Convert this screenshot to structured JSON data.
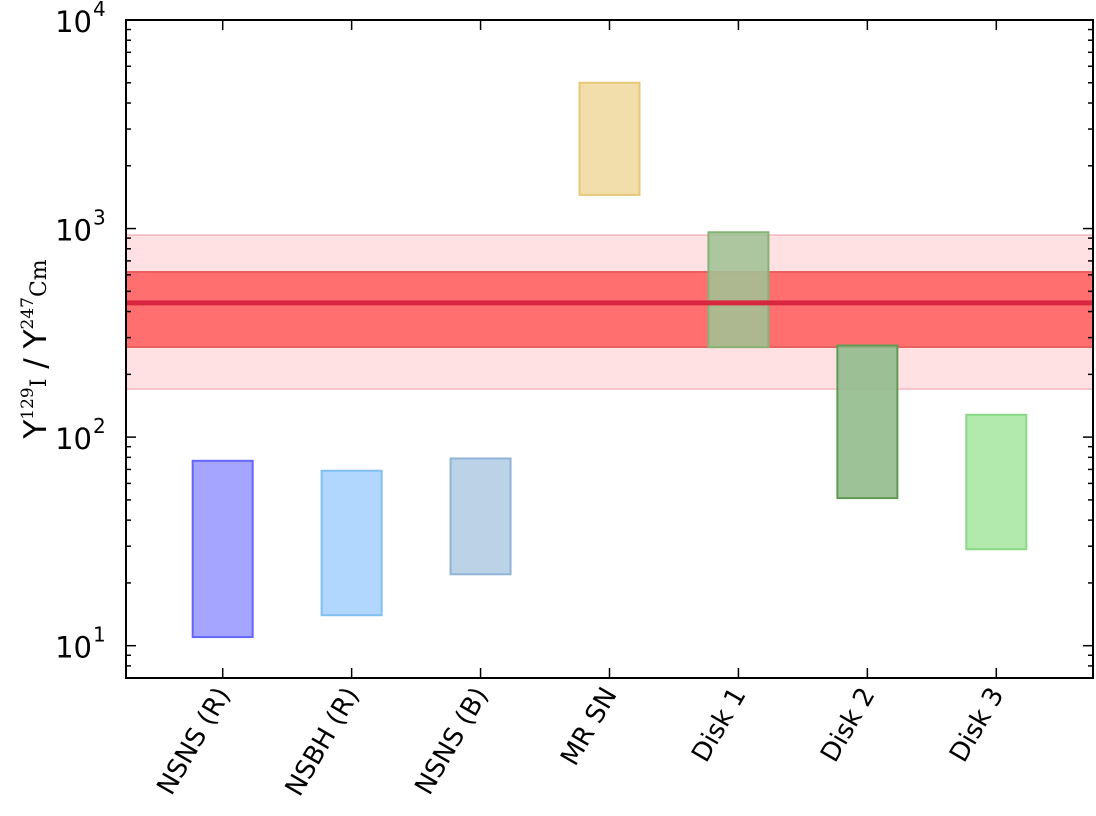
{
  "chart_data": {
    "type": "bar",
    "yscale": "log",
    "ylim": [
      7,
      10000
    ],
    "ylabel": {
      "parts": [
        "Y",
        "129",
        "I",
        " / Y",
        "247",
        "Cm"
      ]
    },
    "yticks": [
      {
        "value": 10,
        "base": "10",
        "exp": "1"
      },
      {
        "value": 100,
        "base": "10",
        "exp": "2"
      },
      {
        "value": 1000,
        "base": "10",
        "exp": "3"
      },
      {
        "value": 10000,
        "base": "10",
        "exp": "4"
      }
    ],
    "categories": [
      "NSNS (R)",
      "NSBH (R)",
      "NSNS (B)",
      "MR SN",
      "Disk 1",
      "Disk 2",
      "Disk 3"
    ],
    "series": [
      {
        "category": "NSNS (R)",
        "low": 11,
        "high": 77,
        "fill": "#9999ff",
        "stroke": "#6666ff"
      },
      {
        "category": "NSBH (R)",
        "low": 14,
        "high": 69,
        "fill": "#a6d2ff",
        "stroke": "#80bff2"
      },
      {
        "category": "NSNS (B)",
        "low": 22,
        "high": 79,
        "fill": "#b3cce3",
        "stroke": "#8fb4d6"
      },
      {
        "category": "MR SN",
        "low": 1450,
        "high": 5000,
        "fill": "#efd99f",
        "stroke": "#e6c878"
      },
      {
        "category": "Disk 1",
        "low": 270,
        "high": 960,
        "fill": "#a2c295",
        "stroke": "#86b374"
      },
      {
        "category": "Disk 2",
        "low": 51,
        "high": 275,
        "fill": "#8fb98a",
        "stroke": "#5f9a55"
      },
      {
        "category": "Disk 3",
        "low": 29,
        "high": 128,
        "fill": "#a7e6a2",
        "stroke": "#8ad886"
      }
    ],
    "reference": {
      "value": 440,
      "inner_band": [
        270,
        620
      ],
      "outer_band": [
        170,
        930
      ],
      "line_color": "#d7263d",
      "inner_color": "#ff6f6f",
      "outer_color": "#ffe0e3"
    },
    "grid": false,
    "legend": "none"
  }
}
